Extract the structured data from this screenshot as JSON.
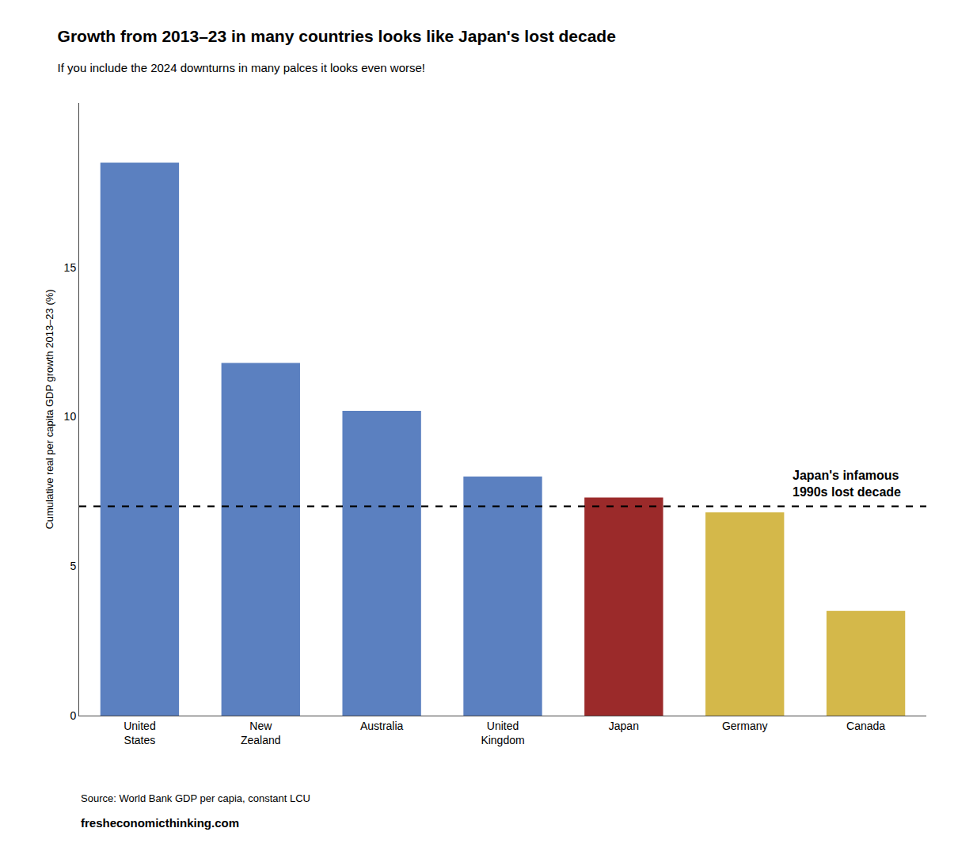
{
  "chart_data": {
    "type": "bar",
    "title": "Growth from 2013–23 in many countries looks like Japan's lost decade",
    "subtitle": "If you include the 2024 downturns in many palces it looks even worse!",
    "ylabel": "Cumulative real per capita GDP growth 2013–23 (%)",
    "categories": [
      "United\nStates",
      "New\nZealand",
      "Australia",
      "United\nKingdom",
      "Japan",
      "Germany",
      "Canada"
    ],
    "values": [
      18.5,
      11.8,
      10.2,
      8.0,
      7.3,
      6.8,
      3.5
    ],
    "colors": [
      "#5b80c0",
      "#5b80c0",
      "#5b80c0",
      "#5b80c0",
      "#9b2a2a",
      "#d4b84a",
      "#d4b84a"
    ],
    "reference_line": 7.0,
    "annotations": [
      "Japan's infamous\n1990s lost decade"
    ],
    "source": "Source: World Bank GDP per capia, constant LCU",
    "website": "fresheconomicthinking.com",
    "ylim": [
      0,
      20.5
    ],
    "yticks": [
      0,
      5,
      10,
      15
    ],
    "grid": false
  }
}
